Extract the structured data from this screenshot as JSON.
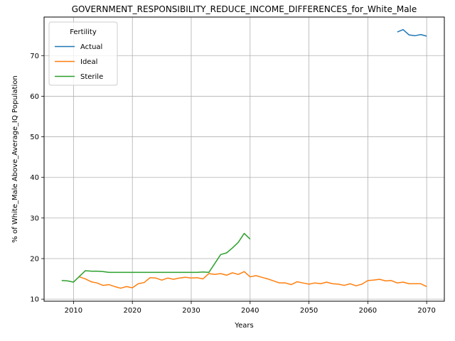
{
  "chart_data": {
    "type": "line",
    "title": "GOVERNMENT_RESPONSIBILITY_REDUCE_INCOME_DIFFERENCES_for_White_Male",
    "xlabel": "Years",
    "ylabel": "% of White_Male Above_Average_IQ Population",
    "xlim": [
      2005,
      2073
    ],
    "ylim": [
      9.5,
      79.5
    ],
    "xticks": [
      2010,
      2020,
      2030,
      2040,
      2050,
      2060,
      2070
    ],
    "yticks": [
      10,
      20,
      30,
      40,
      50,
      60,
      70
    ],
    "grid": true,
    "legend": {
      "title": "Fertility",
      "placement": "upper-left"
    },
    "series": [
      {
        "name": "Actual",
        "color": "#1f77b4",
        "x": [
          2065,
          2066,
          2067,
          2068,
          2069,
          2070
        ],
        "y": [
          75.8,
          76.4,
          75.1,
          74.9,
          75.2,
          74.8
        ]
      },
      {
        "name": "Ideal",
        "color": "#ff7f0e",
        "x": [
          2011,
          2012,
          2013,
          2014,
          2015,
          2016,
          2017,
          2018,
          2019,
          2020,
          2021,
          2022,
          2023,
          2024,
          2025,
          2026,
          2027,
          2028,
          2029,
          2030,
          2031,
          2032,
          2033,
          2034,
          2035,
          2036,
          2037,
          2038,
          2039,
          2040,
          2041,
          2042,
          2043,
          2044,
          2045,
          2046,
          2047,
          2048,
          2049,
          2050,
          2051,
          2052,
          2053,
          2054,
          2055,
          2056,
          2057,
          2058,
          2059,
          2060,
          2061,
          2062,
          2063,
          2064,
          2065,
          2066,
          2067,
          2068,
          2069,
          2070
        ],
        "y": [
          15.5,
          15.0,
          14.3,
          14.0,
          13.4,
          13.6,
          13.1,
          12.7,
          13.1,
          12.8,
          13.8,
          14.1,
          15.3,
          15.2,
          14.7,
          15.2,
          14.9,
          15.2,
          15.4,
          15.2,
          15.3,
          15.0,
          16.3,
          16.1,
          16.3,
          15.9,
          16.5,
          16.1,
          16.8,
          15.5,
          15.8,
          15.4,
          15.0,
          14.5,
          14.0,
          14.0,
          13.6,
          14.3,
          14.0,
          13.7,
          14.0,
          13.8,
          14.2,
          13.8,
          13.7,
          13.4,
          13.8,
          13.3,
          13.7,
          14.6,
          14.7,
          14.9,
          14.5,
          14.6,
          14.0,
          14.2,
          13.8,
          13.8,
          13.8,
          13.1
        ]
      },
      {
        "name": "Sterile",
        "color": "#2ca02c",
        "x": [
          2008,
          2009,
          2010,
          2011,
          2012,
          2013,
          2014,
          2015,
          2016,
          2017,
          2018,
          2019,
          2020,
          2021,
          2022,
          2023,
          2024,
          2025,
          2026,
          2027,
          2028,
          2029,
          2030,
          2031,
          2032,
          2033,
          2034,
          2035,
          2036,
          2037,
          2038,
          2039,
          2040
        ],
        "y": [
          14.6,
          14.5,
          14.2,
          15.6,
          17.0,
          16.9,
          16.9,
          16.8,
          16.6,
          16.6,
          16.6,
          16.6,
          16.6,
          16.6,
          16.6,
          16.6,
          16.6,
          16.6,
          16.6,
          16.6,
          16.6,
          16.6,
          16.6,
          16.6,
          16.7,
          16.6,
          18.8,
          21.0,
          21.4,
          22.6,
          24.0,
          26.2,
          24.8
        ]
      }
    ]
  }
}
